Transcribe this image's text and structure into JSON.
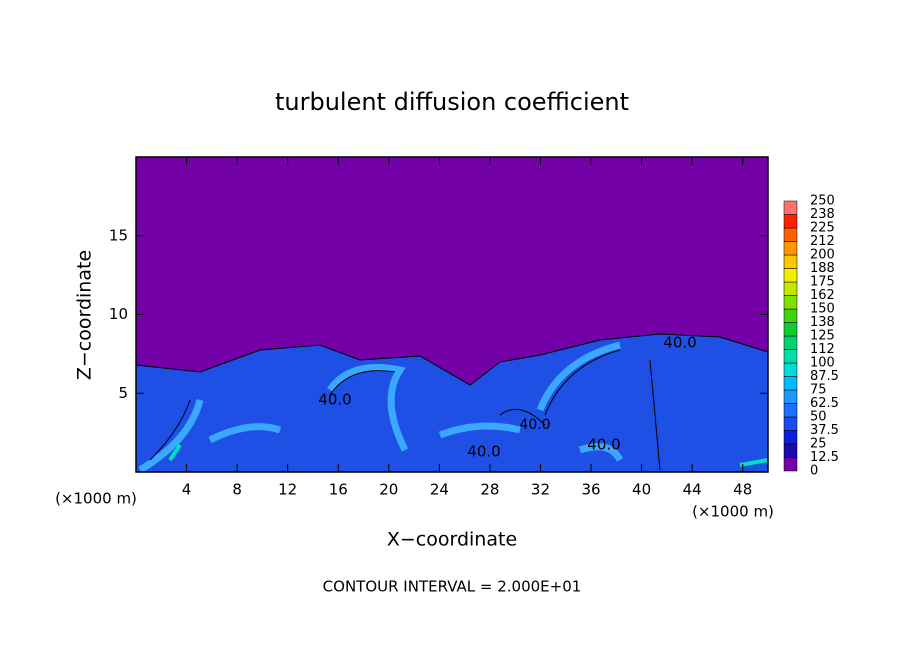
{
  "chart_data": {
    "type": "contour",
    "title": "turbulent diffusion coefficient",
    "x_label": "X−coordinate",
    "y_label": "Z−coordinate",
    "x_unit": "(×1000 m)",
    "x_unit_right": "(×1000 m)",
    "footer": "CONTOUR INTERVAL = 2.000E+01",
    "xlim": [
      0,
      50
    ],
    "xticks": [
      4,
      8,
      12,
      16,
      20,
      24,
      28,
      32,
      36,
      40,
      44,
      48
    ],
    "ylim": [
      0,
      20
    ],
    "yticks": [
      5,
      10,
      15
    ],
    "annotations": [
      "40.0",
      "40.0",
      "40.0",
      "40.0",
      "40.0"
    ],
    "colorbar": {
      "levels": [
        0,
        12.5,
        25,
        37.5,
        50,
        62.5,
        75,
        87.5,
        100,
        112,
        125,
        138,
        150,
        162,
        175,
        188,
        200,
        212,
        225,
        238,
        250
      ],
      "colors": [
        "#7400a8",
        "#1a0cb0",
        "#0a1ee0",
        "#1a4cf0",
        "#1c70ff",
        "#1c98ff",
        "#00bcff",
        "#00dcdc",
        "#00e0a8",
        "#00d470",
        "#10cc30",
        "#40d410",
        "#80e000",
        "#c0e800",
        "#f0f000",
        "#f8c800",
        "#ff9800",
        "#ff6000",
        "#ff2000",
        "#ff7070"
      ]
    }
  }
}
